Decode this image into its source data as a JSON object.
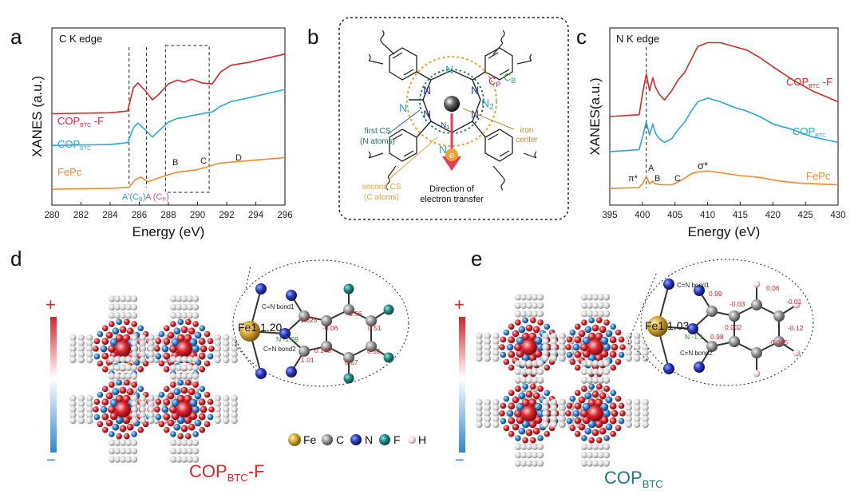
{
  "panels": {
    "a": "a",
    "b": "b",
    "c": "c",
    "d": "d",
    "e": "e"
  },
  "colors": {
    "cop_f": "#d9262c",
    "cop": "#2aa5d8",
    "fepc": "#f08a2c",
    "pos": "#e0242c",
    "neg": "#2f86d6",
    "fe": "#c99a22",
    "c": "#8c8c8c",
    "n": "#2b3bc0",
    "f": "#1f8a80",
    "h": "#f2dada"
  },
  "chart_data": [
    {
      "type": "line",
      "panel": "a",
      "edge_label": "C K edge",
      "xlabel": "Energy (eV)",
      "ylabel": "XANES (a.u.)",
      "xlim": [
        280,
        296
      ],
      "x_ticks": [
        "280",
        "282",
        "284",
        "286",
        "288",
        "290",
        "292",
        "294",
        "296"
      ],
      "series": [
        {
          "name": "COP",
          "sub": "BTC",
          "suffix": " -F",
          "x": [
            280,
            284,
            285.2,
            285.6,
            285.9,
            286.4,
            286.9,
            287.3,
            288.0,
            288.6,
            289.1,
            289.6,
            290.3,
            291.0,
            291.6,
            292.3,
            293.5,
            296
          ],
          "y": [
            4.3,
            4.35,
            4.45,
            5.7,
            5.95,
            5.55,
            5.05,
            5.3,
            5.9,
            6.1,
            6.0,
            6.15,
            5.95,
            5.9,
            6.55,
            6.9,
            7.05,
            7.5
          ]
        },
        {
          "name": "COP",
          "sub": "BTC",
          "suffix": "",
          "x": [
            280,
            284,
            285.2,
            285.6,
            285.9,
            286.4,
            286.9,
            287.3,
            288.0,
            288.6,
            289.1,
            289.6,
            290.3,
            291.0,
            291.6,
            292.3,
            293.5,
            296
          ],
          "y": [
            2.6,
            2.65,
            2.75,
            3.55,
            3.8,
            3.45,
            3.05,
            3.35,
            3.85,
            4.05,
            4.1,
            4.2,
            4.3,
            4.4,
            4.7,
            4.95,
            5.15,
            5.6
          ]
        },
        {
          "name": "FePc",
          "sub": "",
          "suffix": "",
          "x": [
            280,
            284,
            285.3,
            285.7,
            286.1,
            286.6,
            287.3,
            288.5,
            290.0,
            291.5,
            293.0,
            296
          ],
          "y": [
            0.25,
            0.3,
            0.35,
            0.75,
            0.9,
            0.65,
            0.85,
            1.15,
            1.3,
            1.65,
            1.75,
            1.95
          ]
        }
      ],
      "guides": [
        285.3,
        286.5
      ],
      "box": [
        287.8,
        290.8
      ],
      "annotations": {
        "A_prime": "A'(C",
        "A_prime_sub": "B",
        "A": "A (C",
        "A_sub": "P",
        "B": "B",
        "C": "C",
        "D": "D"
      }
    },
    {
      "type": "line",
      "panel": "c",
      "edge_label": "N K edge",
      "xlabel": "Energy (eV)",
      "ylabel": "XANES(a.u.)",
      "xlim": [
        395,
        430
      ],
      "x_ticks": [
        "395",
        "400",
        "405",
        "410",
        "415",
        "420",
        "425",
        "430"
      ],
      "series": [
        {
          "name": "COP",
          "sub": "BTC",
          "suffix": " -F",
          "x": [
            395,
            399.5,
            400.1,
            400.6,
            401.1,
            401.6,
            402.0,
            402.6,
            403.4,
            404.5,
            405.5,
            406.5,
            407.5,
            408.5,
            410,
            412,
            414,
            416,
            418,
            420,
            423,
            426,
            430
          ],
          "y": [
            4.2,
            4.3,
            5.6,
            6.5,
            5.6,
            6.3,
            5.8,
            5.4,
            5.1,
            5.6,
            6.2,
            6.6,
            7.3,
            8.0,
            8.2,
            8.2,
            8.0,
            7.8,
            7.4,
            6.9,
            6.2,
            5.6,
            5.0
          ]
        },
        {
          "name": "COP",
          "sub": "BTC",
          "suffix": "",
          "x": [
            395,
            399.5,
            400.1,
            400.6,
            401.1,
            401.6,
            402.0,
            402.6,
            403.4,
            404.5,
            405.5,
            406.5,
            407.5,
            408.5,
            410,
            412,
            414,
            416,
            418,
            420,
            423,
            426,
            430
          ],
          "y": [
            2.3,
            2.4,
            3.2,
            3.9,
            3.2,
            3.8,
            3.3,
            3.0,
            2.8,
            3.0,
            3.5,
            3.9,
            4.5,
            5.0,
            5.2,
            5.0,
            4.7,
            4.5,
            4.2,
            3.8,
            3.5,
            3.1,
            2.8
          ]
        },
        {
          "name": "FePc",
          "sub": "",
          "suffix": "",
          "x": [
            395,
            399.5,
            400.1,
            400.6,
            401.1,
            401.6,
            402.0,
            403.0,
            404.5,
            406.0,
            407.5,
            408.5,
            410,
            412,
            415,
            418,
            421,
            424,
            427,
            430
          ],
          "y": [
            0.3,
            0.35,
            0.6,
            0.95,
            0.55,
            0.7,
            0.55,
            0.5,
            0.5,
            0.75,
            1.1,
            1.2,
            1.25,
            1.15,
            1.0,
            0.9,
            0.7,
            0.6,
            0.55,
            0.5
          ]
        }
      ],
      "guides": [
        400.6
      ],
      "annotations": {
        "pi": "π*",
        "A": "A",
        "B": "B",
        "C": "C",
        "sigma": "σ*"
      }
    }
  ],
  "schematic_b": {
    "first_cs": "first CS",
    "first_cs_sub": "(N atoms)",
    "second_cs": "second CS",
    "second_cs_sub": "(C atoms)",
    "iron": "iron",
    "iron_sub": "center",
    "direction": "Direction of",
    "direction_sub": "electron transfer",
    "e_label": "e",
    "n_label": "N",
    "n1": "N",
    "n1_sub": "1",
    "n2": "N",
    "n2_sub": "2",
    "cp": "C",
    "cp_sub": "P",
    "cb": "C",
    "cb_sub": "B"
  },
  "panel_d": {
    "plus": "+",
    "minus": "−",
    "fe_label": "Fe1  1.20",
    "n_charge": "N -1.09",
    "bond1": "C=N bond1",
    "bond2": "C=N bond2",
    "charges": [
      "1.025",
      "-0.06",
      "0.56",
      "0.51",
      "0.145",
      "1.01",
      "0.67",
      "0.56"
    ],
    "caption": "COP",
    "caption_sub": "BTC",
    "caption_suffix": "-F"
  },
  "panel_e": {
    "plus": "+",
    "minus": "−",
    "fe_label": "Fe1  1.03",
    "n_charge": "N -1.1",
    "bond1": "C=N bond1",
    "bond2": "C=N bond2",
    "charges": [
      "0.99",
      "-0.03",
      "0.06",
      "-0.01",
      "0.002",
      "0.98",
      "-0.045",
      "-0.12"
    ],
    "caption": "COP",
    "caption_sub": "BTC"
  },
  "legend": [
    "Fe",
    "C",
    "N",
    "F",
    "H"
  ]
}
